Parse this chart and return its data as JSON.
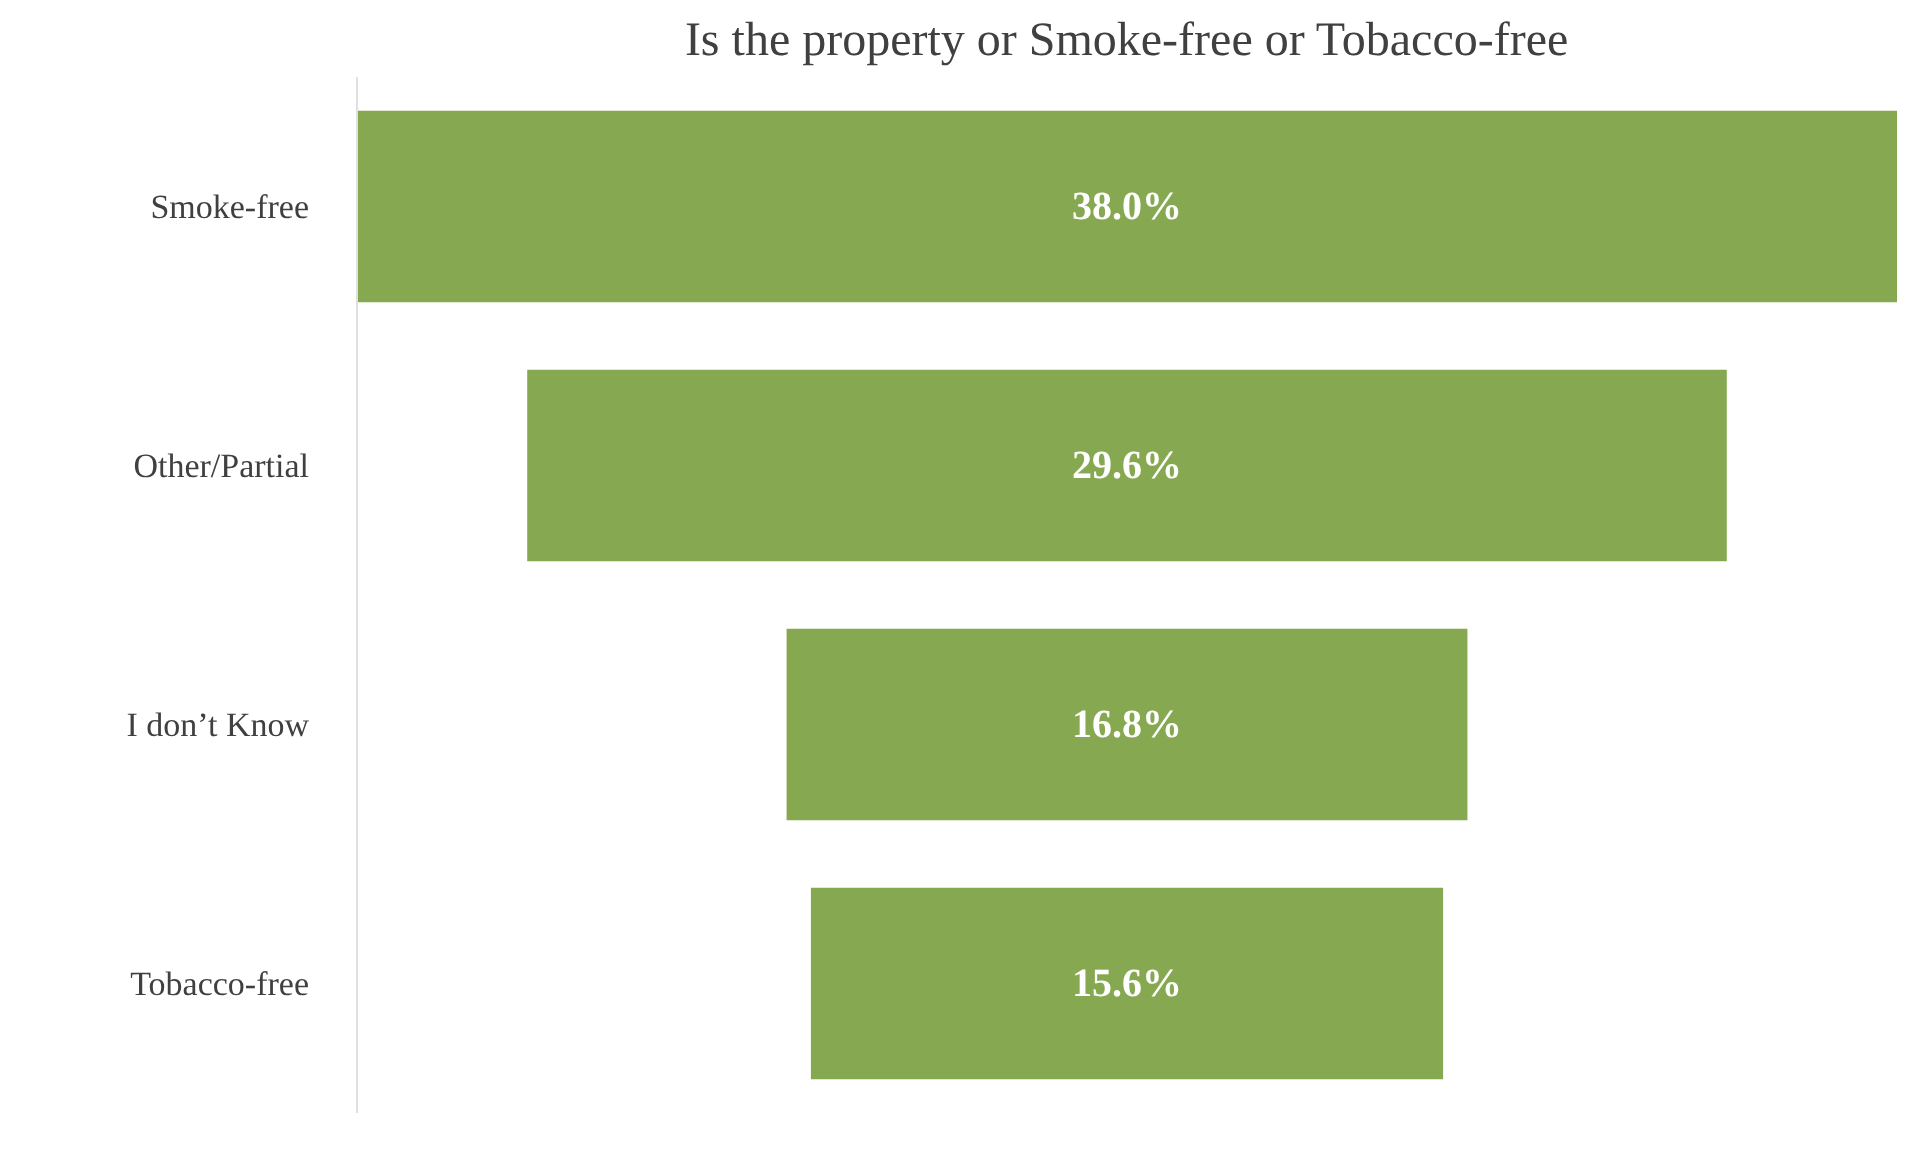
{
  "chart_data": {
    "type": "other",
    "title": "Is the property or Smoke-free or Tobacco-free",
    "categories": [
      "Smoke-free",
      "Other/Partial",
      "I don’t Know",
      "Tobacco-free"
    ],
    "values": [
      38.0,
      29.6,
      16.8,
      15.6
    ],
    "value_labels": [
      "38.0%",
      "29.6%",
      "16.8%",
      "15.6%"
    ],
    "color": "#86a851"
  }
}
